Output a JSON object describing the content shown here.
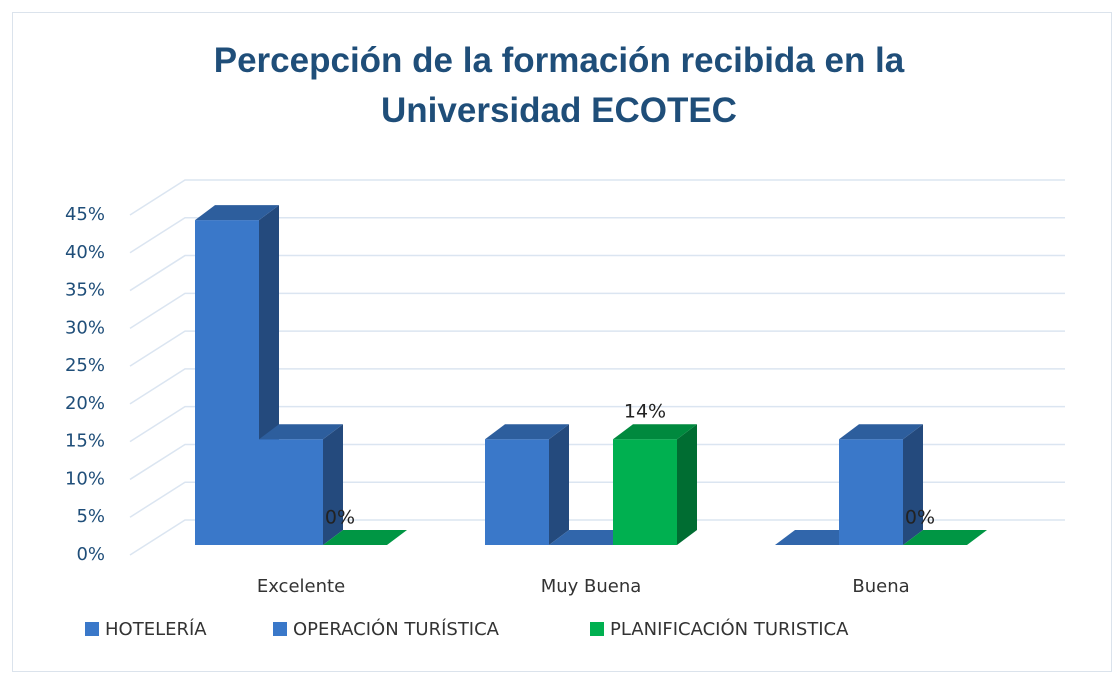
{
  "chart_data": {
    "type": "bar3d",
    "title": "Percepción de la formación recibida en la Universidad ECOTEC",
    "categories": [
      "Excelente",
      "Muy Buena",
      "Buena"
    ],
    "series": [
      {
        "name": "HOTELERÍA",
        "color": "#3a78c9",
        "values": [
          43,
          14,
          0
        ]
      },
      {
        "name": "OPERACIÓN TURÍSTICA",
        "color": "#3a78c9",
        "values": [
          14,
          0,
          14
        ]
      },
      {
        "name": "PLANIFICACIÓN TURISTICA",
        "color": "#00b050",
        "values": [
          0,
          14,
          0
        ],
        "value_labels": [
          "0%",
          "14%",
          "0%"
        ]
      }
    ],
    "ylim": [
      0,
      45
    ],
    "yticks": [
      {
        "value": 0,
        "label": "0%"
      },
      {
        "value": 5,
        "label": "5%"
      },
      {
        "value": 10,
        "label": "10%"
      },
      {
        "value": 15,
        "label": "15%"
      },
      {
        "value": 20,
        "label": "20%"
      },
      {
        "value": 25,
        "label": "25%"
      },
      {
        "value": 30,
        "label": "30%"
      },
      {
        "value": 35,
        "label": "35%"
      },
      {
        "value": 40,
        "label": "40%"
      },
      {
        "value": 45,
        "label": "45%"
      }
    ],
    "grid": true,
    "legend": "bottom"
  }
}
